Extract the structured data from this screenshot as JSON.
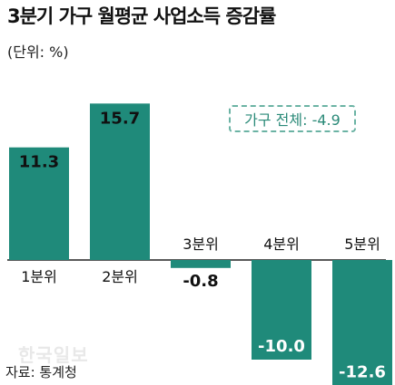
{
  "title": "3분기 가구 월평균 사업소득 증감률",
  "unit_label": "(단위: %)",
  "total_label": "가구 전체: -4.9",
  "source_label": "자료: 통계청",
  "watermark": "한국일보",
  "colors": {
    "bar": "#1f8a7a",
    "axis": "#222222",
    "total_text": "#2a8a78"
  },
  "chart_data": {
    "type": "bar",
    "categories": [
      "1분위",
      "2분위",
      "3분위",
      "4분위",
      "5분위"
    ],
    "values": [
      11.3,
      15.7,
      -0.8,
      -10.0,
      -12.6
    ],
    "value_labels": [
      "11.3",
      "15.7",
      "-0.8",
      "-10.0",
      "-12.6"
    ],
    "title": "3분기 가구 월평균 사업소득 증감률",
    "ylabel": "(단위: %)",
    "ylim": [
      -12.6,
      15.7
    ]
  }
}
